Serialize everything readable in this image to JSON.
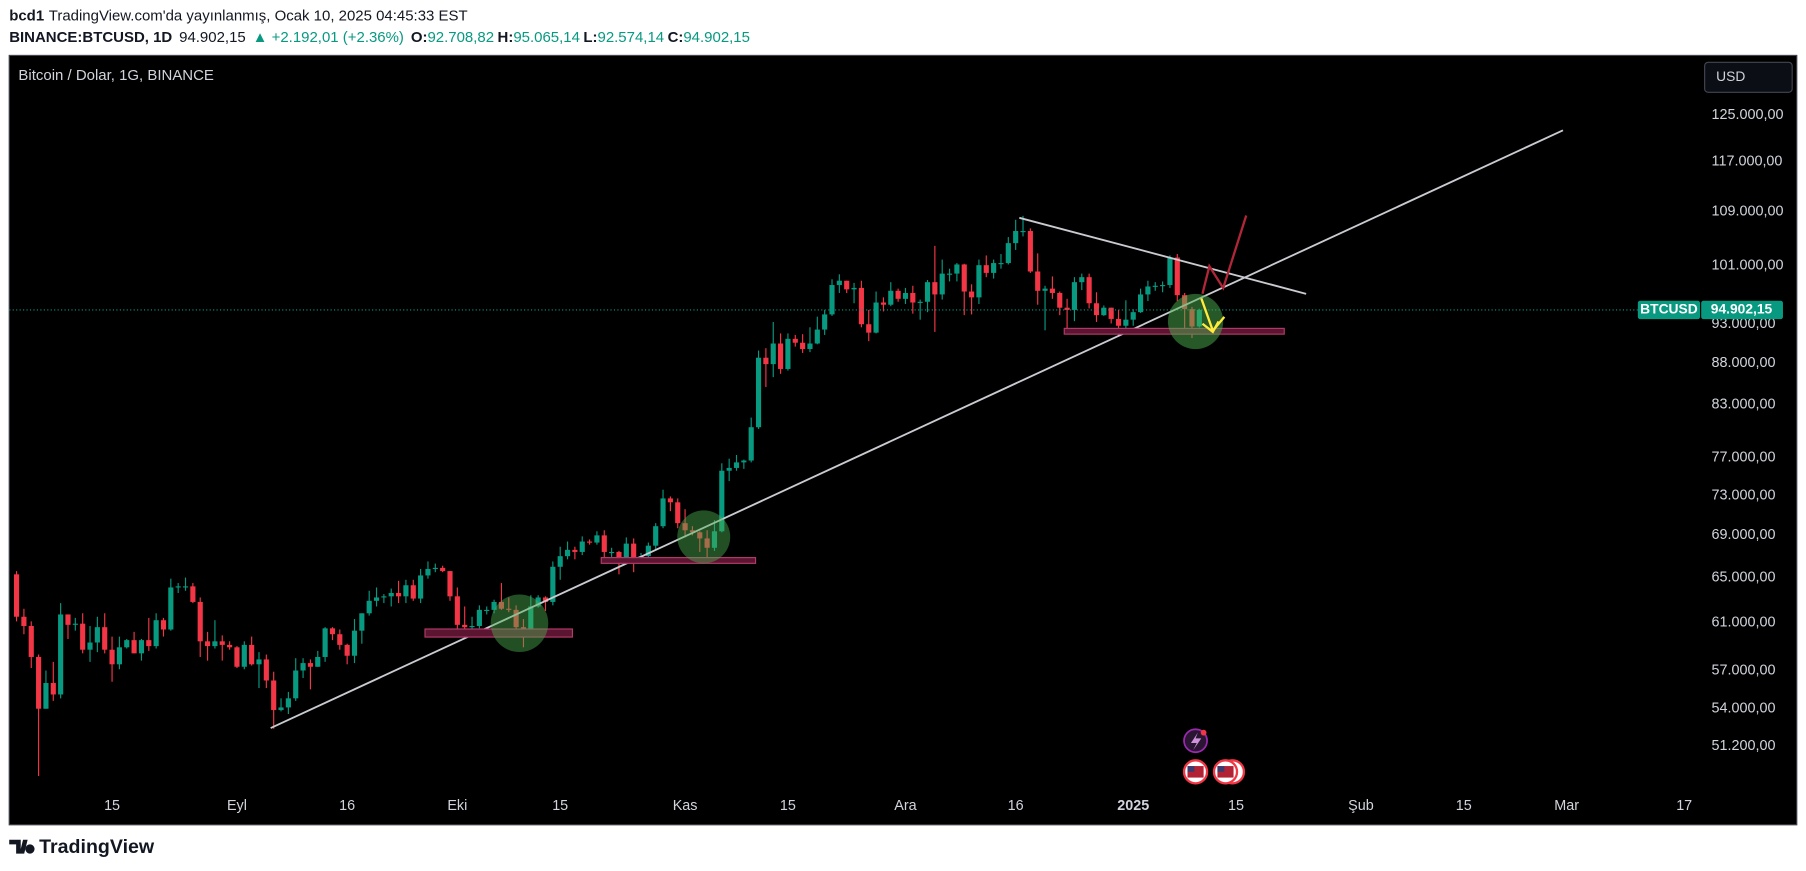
{
  "header": {
    "author": "bcd1",
    "published": "TradingView.com'da yayınlanmış, Ocak 10, 2025 04:45:33 EST",
    "symbol": "BINANCE:BTCUSD, 1D",
    "price": "94.902,15",
    "change": "▲ +2.192,01 (+2.36%)",
    "ohlc_labels": [
      "O:",
      "H:",
      "L:",
      "C:"
    ],
    "ohlc_values": [
      "92.708,82",
      "95.065,14",
      "92.574,14",
      "94.902,15"
    ]
  },
  "footer": {
    "brand": "TradingView"
  },
  "chart_data": {
    "type": "candlestick",
    "title": "Bitcoin / Dolar, 1G, BINANCE",
    "currency": "USD",
    "log_scale": true,
    "grid": false,
    "up_color": "#089981",
    "down_color": "#f23645",
    "last_price": {
      "name": "BTCUSD",
      "value": 94902.15,
      "label": "94.902,15"
    },
    "xlim": [
      "2024-08-01",
      "2025-03-19"
    ],
    "ylim": [
      48200,
      136000
    ],
    "yticks": [
      {
        "value": 51200,
        "label": "51.200,00"
      },
      {
        "value": 54000,
        "label": "54.000,00"
      },
      {
        "value": 57000,
        "label": "57.000,00"
      },
      {
        "value": 61000,
        "label": "61.000,00"
      },
      {
        "value": 65000,
        "label": "65.000,00"
      },
      {
        "value": 69000,
        "label": "69.000,00"
      },
      {
        "value": 73000,
        "label": "73.000,00"
      },
      {
        "value": 77000,
        "label": "77.000,00"
      },
      {
        "value": 83000,
        "label": "83.000,00"
      },
      {
        "value": 88000,
        "label": "88.000,00"
      },
      {
        "value": 93000,
        "label": "93.000,00"
      },
      {
        "value": 101000,
        "label": "101.000,00"
      },
      {
        "value": 109000,
        "label": "109.000,00"
      },
      {
        "value": 117000,
        "label": "117.000,00"
      },
      {
        "value": 125000,
        "label": "125.000,00"
      }
    ],
    "xticks": [
      {
        "value": "2024-08-15",
        "label": "15"
      },
      {
        "value": "2024-09-01",
        "label": "Eyl"
      },
      {
        "value": "2024-09-16",
        "label": "16"
      },
      {
        "value": "2024-10-01",
        "label": "Eki"
      },
      {
        "value": "2024-10-15",
        "label": "15"
      },
      {
        "value": "2024-11-01",
        "label": "Kas"
      },
      {
        "value": "2024-11-15",
        "label": "15"
      },
      {
        "value": "2024-12-01",
        "label": "Ara"
      },
      {
        "value": "2024-12-16",
        "label": "16"
      },
      {
        "value": "2025-01-01",
        "label": "2025"
      },
      {
        "value": "2025-01-15",
        "label": "15"
      },
      {
        "value": "2025-02-01",
        "label": "Şub"
      },
      {
        "value": "2025-02-15",
        "label": "15"
      },
      {
        "value": "2025-03-01",
        "label": "Mar"
      },
      {
        "value": "2025-03-17",
        "label": "17"
      }
    ],
    "x": [
      "2024-08-02",
      "2024-08-03",
      "2024-08-04",
      "2024-08-05",
      "2024-08-06",
      "2024-08-07",
      "2024-08-08",
      "2024-08-09",
      "2024-08-10",
      "2024-08-11",
      "2024-08-12",
      "2024-08-13",
      "2024-08-14",
      "2024-08-15",
      "2024-08-16",
      "2024-08-17",
      "2024-08-18",
      "2024-08-19",
      "2024-08-20",
      "2024-08-21",
      "2024-08-22",
      "2024-08-23",
      "2024-08-24",
      "2024-08-25",
      "2024-08-26",
      "2024-08-27",
      "2024-08-28",
      "2024-08-29",
      "2024-08-30",
      "2024-08-31",
      "2024-09-01",
      "2024-09-02",
      "2024-09-03",
      "2024-09-04",
      "2024-09-05",
      "2024-09-06",
      "2024-09-07",
      "2024-09-08",
      "2024-09-09",
      "2024-09-10",
      "2024-09-11",
      "2024-09-12",
      "2024-09-13",
      "2024-09-14",
      "2024-09-15",
      "2024-09-16",
      "2024-09-17",
      "2024-09-18",
      "2024-09-19",
      "2024-09-20",
      "2024-09-21",
      "2024-09-22",
      "2024-09-23",
      "2024-09-24",
      "2024-09-25",
      "2024-09-26",
      "2024-09-27",
      "2024-09-28",
      "2024-09-29",
      "2024-09-30",
      "2024-10-01",
      "2024-10-02",
      "2024-10-03",
      "2024-10-04",
      "2024-10-05",
      "2024-10-06",
      "2024-10-07",
      "2024-10-08",
      "2024-10-09",
      "2024-10-10",
      "2024-10-11",
      "2024-10-12",
      "2024-10-13",
      "2024-10-14",
      "2024-10-15",
      "2024-10-16",
      "2024-10-17",
      "2024-10-18",
      "2024-10-19",
      "2024-10-20",
      "2024-10-21",
      "2024-10-22",
      "2024-10-23",
      "2024-10-24",
      "2024-10-25",
      "2024-10-26",
      "2024-10-27",
      "2024-10-28",
      "2024-10-29",
      "2024-10-30",
      "2024-10-31",
      "2024-11-01",
      "2024-11-02",
      "2024-11-03",
      "2024-11-04",
      "2024-11-05",
      "2024-11-06",
      "2024-11-07",
      "2024-11-08",
      "2024-11-09",
      "2024-11-10",
      "2024-11-11",
      "2024-11-12",
      "2024-11-13",
      "2024-11-14",
      "2024-11-15",
      "2024-11-16",
      "2024-11-17",
      "2024-11-18",
      "2024-11-19",
      "2024-11-20",
      "2024-11-21",
      "2024-11-22",
      "2024-11-23",
      "2024-11-24",
      "2024-11-25",
      "2024-11-26",
      "2024-11-27",
      "2024-11-28",
      "2024-11-29",
      "2024-11-30",
      "2024-12-01",
      "2024-12-02",
      "2024-12-03",
      "2024-12-04",
      "2024-12-05",
      "2024-12-06",
      "2024-12-07",
      "2024-12-08",
      "2024-12-09",
      "2024-12-10",
      "2024-12-11",
      "2024-12-12",
      "2024-12-13",
      "2024-12-14",
      "2024-12-15",
      "2024-12-16",
      "2024-12-17",
      "2024-12-18",
      "2024-12-19",
      "2024-12-20",
      "2024-12-21",
      "2024-12-22",
      "2024-12-23",
      "2024-12-24",
      "2024-12-25",
      "2024-12-26",
      "2024-12-27",
      "2024-12-28",
      "2024-12-29",
      "2024-12-30",
      "2024-12-31",
      "2025-01-01",
      "2025-01-02",
      "2025-01-03",
      "2025-01-04",
      "2025-01-05",
      "2025-01-06",
      "2025-01-07",
      "2025-01-08",
      "2025-01-09",
      "2025-01-10"
    ],
    "ohlc": [
      [
        65300,
        65600,
        61100,
        61500
      ],
      [
        61500,
        62200,
        60000,
        60700
      ],
      [
        60700,
        61100,
        57200,
        58100
      ],
      [
        58100,
        58300,
        49100,
        54000
      ],
      [
        54000,
        57000,
        54000,
        56000
      ],
      [
        56000,
        57700,
        54600,
        55100
      ],
      [
        55100,
        62700,
        54800,
        61700
      ],
      [
        61700,
        61700,
        59600,
        60800
      ],
      [
        60800,
        61400,
        60300,
        60900
      ],
      [
        60900,
        61800,
        58400,
        58700
      ],
      [
        58700,
        60700,
        57700,
        59300
      ],
      [
        59300,
        61500,
        58500,
        60600
      ],
      [
        60600,
        61800,
        58400,
        58700
      ],
      [
        58700,
        59800,
        56100,
        57500
      ],
      [
        57500,
        59800,
        57100,
        58900
      ],
      [
        58900,
        59600,
        58800,
        59500
      ],
      [
        59500,
        60200,
        58400,
        58400
      ],
      [
        58400,
        59600,
        57800,
        59500
      ],
      [
        59500,
        61400,
        58600,
        59000
      ],
      [
        59000,
        61800,
        58800,
        61200
      ],
      [
        61200,
        61400,
        59800,
        60400
      ],
      [
        60400,
        64900,
        60300,
        64100
      ],
      [
        64100,
        64500,
        63600,
        64200
      ],
      [
        64200,
        65000,
        63800,
        64200
      ],
      [
        64200,
        64500,
        62700,
        62800
      ],
      [
        62800,
        63200,
        58100,
        59400
      ],
      [
        59400,
        60200,
        57800,
        59000
      ],
      [
        59000,
        61200,
        58800,
        59400
      ],
      [
        59400,
        59900,
        57800,
        59100
      ],
      [
        59100,
        59400,
        58700,
        58900
      ],
      [
        58900,
        59000,
        57200,
        57300
      ],
      [
        57300,
        59400,
        57100,
        59100
      ],
      [
        59100,
        59800,
        57400,
        57500
      ],
      [
        57500,
        58500,
        55600,
        57900
      ],
      [
        57900,
        58300,
        55600,
        56200
      ],
      [
        56200,
        56900,
        52500,
        53900
      ],
      [
        53900,
        54800,
        53800,
        54100
      ],
      [
        54100,
        55300,
        53600,
        54800
      ],
      [
        54800,
        58000,
        54600,
        57000
      ],
      [
        57000,
        58000,
        56400,
        57600
      ],
      [
        57600,
        57900,
        55500,
        57300
      ],
      [
        57300,
        58600,
        57300,
        58100
      ],
      [
        58100,
        60600,
        57700,
        60500
      ],
      [
        60500,
        60600,
        59500,
        60000
      ],
      [
        60000,
        60400,
        58700,
        59100
      ],
      [
        59100,
        59200,
        57500,
        58200
      ],
      [
        58200,
        61300,
        57600,
        60300
      ],
      [
        60300,
        61800,
        59200,
        61800
      ],
      [
        61800,
        63800,
        61600,
        62900
      ],
      [
        62900,
        64100,
        62400,
        63200
      ],
      [
        63200,
        63500,
        62700,
        63300
      ],
      [
        63300,
        64000,
        62400,
        63600
      ],
      [
        63600,
        64700,
        62700,
        63300
      ],
      [
        63300,
        64800,
        62700,
        64300
      ],
      [
        64300,
        64800,
        62900,
        63100
      ],
      [
        63100,
        65800,
        62700,
        65200
      ],
      [
        65200,
        66500,
        64900,
        65800
      ],
      [
        65800,
        66300,
        65500,
        65900
      ],
      [
        65900,
        66100,
        65500,
        65600
      ],
      [
        65600,
        65600,
        62900,
        63300
      ],
      [
        63300,
        64100,
        60200,
        60800
      ],
      [
        60800,
        62400,
        60000,
        60600
      ],
      [
        60600,
        61500,
        59900,
        60700
      ],
      [
        60700,
        62500,
        60500,
        62100
      ],
      [
        62100,
        62400,
        61700,
        62100
      ],
      [
        62100,
        63000,
        61800,
        62800
      ],
      [
        62800,
        64500,
        62100,
        62200
      ],
      [
        62200,
        63200,
        61900,
        62100
      ],
      [
        62100,
        62500,
        60300,
        60600
      ],
      [
        60600,
        61300,
        58900,
        60300
      ],
      [
        60300,
        63400,
        60100,
        62400
      ],
      [
        62400,
        63400,
        62300,
        63200
      ],
      [
        63200,
        63300,
        62000,
        62800
      ],
      [
        62800,
        66500,
        62500,
        66000
      ],
      [
        66000,
        67900,
        64800,
        67000
      ],
      [
        67000,
        68400,
        66700,
        67600
      ],
      [
        67600,
        67900,
        66700,
        67400
      ],
      [
        67400,
        68900,
        67100,
        68400
      ],
      [
        68400,
        68600,
        68100,
        68300
      ],
      [
        68300,
        69400,
        68100,
        69000
      ],
      [
        69000,
        69500,
        66800,
        67400
      ],
      [
        67400,
        67800,
        66600,
        67400
      ],
      [
        67400,
        67500,
        65300,
        66700
      ],
      [
        66700,
        68800,
        66500,
        68200
      ],
      [
        68200,
        68700,
        65500,
        66600
      ],
      [
        66600,
        67300,
        66500,
        67000
      ],
      [
        67000,
        68300,
        66800,
        68000
      ],
      [
        68000,
        70200,
        67600,
        69900
      ],
      [
        69900,
        73600,
        69700,
        72700
      ],
      [
        72700,
        72900,
        71400,
        72300
      ],
      [
        72300,
        72700,
        69700,
        70200
      ],
      [
        70200,
        71600,
        68800,
        69500
      ],
      [
        69500,
        69900,
        69000,
        69300
      ],
      [
        69300,
        69400,
        67400,
        68700
      ],
      [
        68700,
        69500,
        66800,
        67800
      ],
      [
        67800,
        70500,
        67500,
        69400
      ],
      [
        69400,
        76400,
        69300,
        75600
      ],
      [
        75600,
        76900,
        74500,
        75900
      ],
      [
        75900,
        77300,
        75600,
        76500
      ],
      [
        76500,
        76800,
        75800,
        76700
      ],
      [
        76700,
        81500,
        76500,
        80400
      ],
      [
        80400,
        89600,
        80200,
        88700
      ],
      [
        88700,
        89900,
        85100,
        87900
      ],
      [
        87900,
        93300,
        86300,
        90500
      ],
      [
        90500,
        91800,
        86700,
        87300
      ],
      [
        87300,
        91800,
        87100,
        91100
      ],
      [
        91100,
        91600,
        90100,
        90600
      ],
      [
        90600,
        91700,
        89300,
        89800
      ],
      [
        89800,
        92600,
        89400,
        90500
      ],
      [
        90500,
        94000,
        90400,
        92300
      ],
      [
        92300,
        94900,
        91600,
        94300
      ],
      [
        94300,
        99100,
        94100,
        98300
      ],
      [
        98300,
        99800,
        97200,
        98900
      ],
      [
        98900,
        98900,
        97200,
        97700
      ],
      [
        97700,
        98600,
        95800,
        97900
      ],
      [
        97900,
        98900,
        92600,
        93000
      ],
      [
        93000,
        94900,
        90800,
        91900
      ],
      [
        91900,
        97400,
        91800,
        95900
      ],
      [
        95900,
        96600,
        94700,
        95600
      ],
      [
        95600,
        98700,
        95400,
        97500
      ],
      [
        97500,
        97800,
        96000,
        96400
      ],
      [
        96400,
        97900,
        95700,
        97200
      ],
      [
        97200,
        98200,
        94400,
        95900
      ],
      [
        95900,
        96300,
        93600,
        96000
      ],
      [
        96000,
        99000,
        94600,
        98700
      ],
      [
        98700,
        103900,
        92000,
        97000
      ],
      [
        97000,
        101900,
        96300,
        99900
      ],
      [
        99900,
        100600,
        98800,
        99900
      ],
      [
        99900,
        101400,
        98800,
        101200
      ],
      [
        101200,
        101300,
        94200,
        97400
      ],
      [
        97400,
        98400,
        94300,
        96600
      ],
      [
        96600,
        101900,
        95700,
        101100
      ],
      [
        101100,
        102500,
        99400,
        100000
      ],
      [
        100000,
        101900,
        99200,
        101400
      ],
      [
        101400,
        102700,
        100600,
        101400
      ],
      [
        101400,
        105200,
        101200,
        104300
      ],
      [
        104300,
        107800,
        103300,
        106100
      ],
      [
        106100,
        108400,
        105300,
        106100
      ],
      [
        106100,
        106500,
        100000,
        100200
      ],
      [
        100200,
        102800,
        95600,
        97500
      ],
      [
        97500,
        98200,
        92200,
        97800
      ],
      [
        97800,
        99500,
        96400,
        97200
      ],
      [
        97200,
        97400,
        94200,
        95200
      ],
      [
        95200,
        96400,
        92400,
        94900
      ],
      [
        94900,
        99400,
        93400,
        98700
      ],
      [
        98700,
        99900,
        97600,
        99400
      ],
      [
        99400,
        99900,
        95100,
        95800
      ],
      [
        95800,
        97300,
        93300,
        94200
      ],
      [
        94200,
        95500,
        94100,
        95200
      ],
      [
        95200,
        95200,
        93100,
        93700
      ],
      [
        93700,
        94900,
        91400,
        92800
      ],
      [
        92800,
        96200,
        91900,
        93600
      ],
      [
        93600,
        95000,
        92800,
        94600
      ],
      [
        94600,
        97800,
        94500,
        97000
      ],
      [
        97000,
        98900,
        96100,
        98100
      ],
      [
        98100,
        98700,
        97500,
        98200
      ],
      [
        98200,
        98800,
        97300,
        98300
      ],
      [
        98300,
        102500,
        97900,
        102200
      ],
      [
        102200,
        102700,
        96100,
        96900
      ],
      [
        96900,
        97200,
        92500,
        95000
      ],
      [
        95000,
        95300,
        91200,
        92700
      ],
      [
        92708.82,
        95065.14,
        92574.14,
        94902.15
      ]
    ]
  }
}
